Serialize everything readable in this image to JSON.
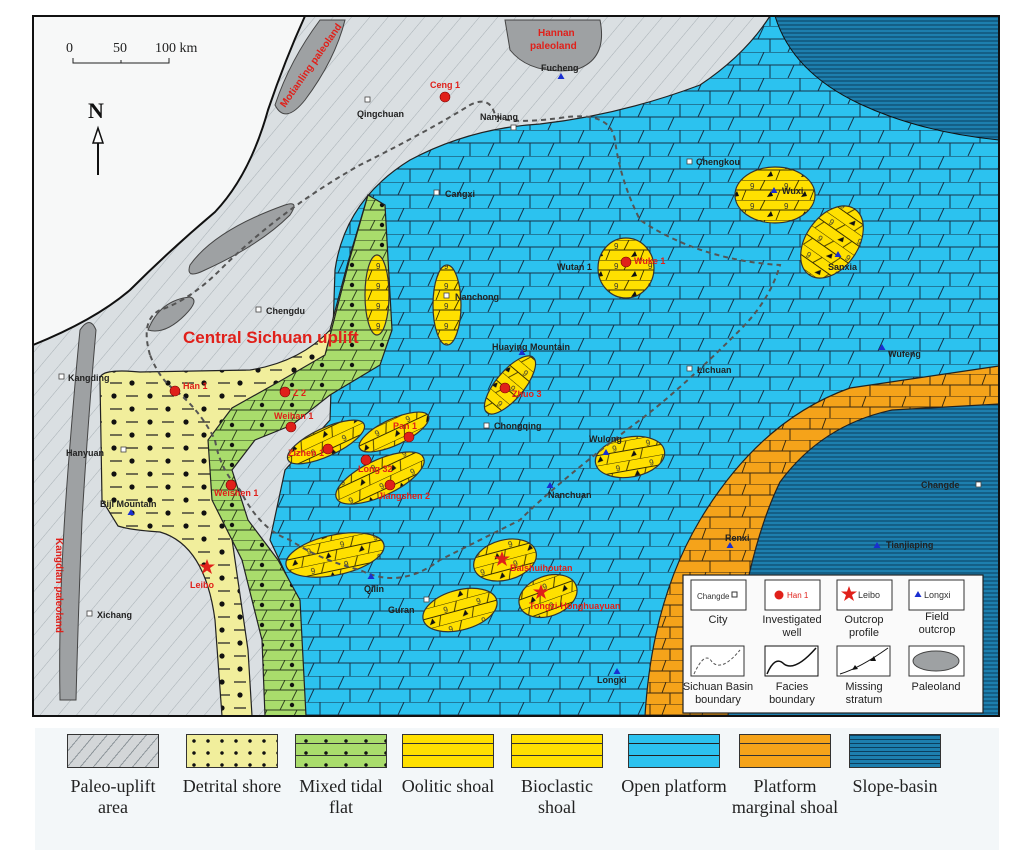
{
  "scale_bar": {
    "t0": "0",
    "t1": "50",
    "t2": "100 km"
  },
  "north_label": "N",
  "regions": {
    "central_uplift": "Central Sichuan uplift",
    "motianling": "Motianling paleoland",
    "hannan_1": "Hannan",
    "hannan_2": "paleoland",
    "kangdian": "Kangdian paleoland"
  },
  "cities": [
    "Qingchuan",
    "Nanjiang",
    "Cangxi",
    "Chengkou",
    "Chengdu",
    "Nanchong",
    "Lichuan",
    "Chongqing",
    "Kangding",
    "Hanyuan",
    "Xichang",
    "Guran",
    "Changde",
    "Wutan 1"
  ],
  "field_outcrops": [
    "Fucheng",
    "Wuxi",
    "Sanxia",
    "Huaying Mountain",
    "Wufeng",
    "Wulong",
    "Nanchuan",
    "Biji Mountain",
    "Qilin",
    "Renxi",
    "Tianjiaping",
    "Longxi"
  ],
  "wells": [
    "Ceng 1",
    "Han 1",
    "Z 2",
    "Weihan 1",
    "Wuke 1",
    "Zhuo 3",
    "Pan 1",
    "Zizhen 1",
    "Long 32",
    "Jiangshen 2",
    "Weishen 1"
  ],
  "outcrop_profiles": [
    "Leibo",
    "Baishuihoutan",
    "Tongzi-Honghuayuan"
  ],
  "map_legend": {
    "city_sample": "Changde",
    "city": "City",
    "well_sample": "Han 1",
    "well_1": "Investigated",
    "well_2": "well",
    "profile_sample": "Leibo",
    "profile_1": "Outcrop",
    "profile_2": "profile",
    "field_sample": "Longxi",
    "field_1": "Field",
    "field_2": "outcrop",
    "boundary_1": "Sichuan Basin",
    "boundary_2": "boundary",
    "facies_1": "Facies",
    "facies_2": "boundary",
    "missing_1": "Missing",
    "missing_2": "stratum",
    "paleoland": "Paleoland"
  },
  "facies_legend": [
    {
      "label": "Paleo-uplift area",
      "color": "#d3d6d8"
    },
    {
      "label": "Detrital shore",
      "color": "#f1ee9c"
    },
    {
      "label": "Mixed tidal flat",
      "color": "#a9dc6c"
    },
    {
      "label": "Oolitic shoal",
      "color": "#ffe000"
    },
    {
      "label": "Bioclastic shoal",
      "color": "#ffe000"
    },
    {
      "label": "Open platform",
      "color": "#2cc2ef"
    },
    {
      "label": "Platform marginal shoal",
      "color": "#f5a31a"
    },
    {
      "label": "Slope-basin",
      "color": "#1d7fae"
    }
  ]
}
